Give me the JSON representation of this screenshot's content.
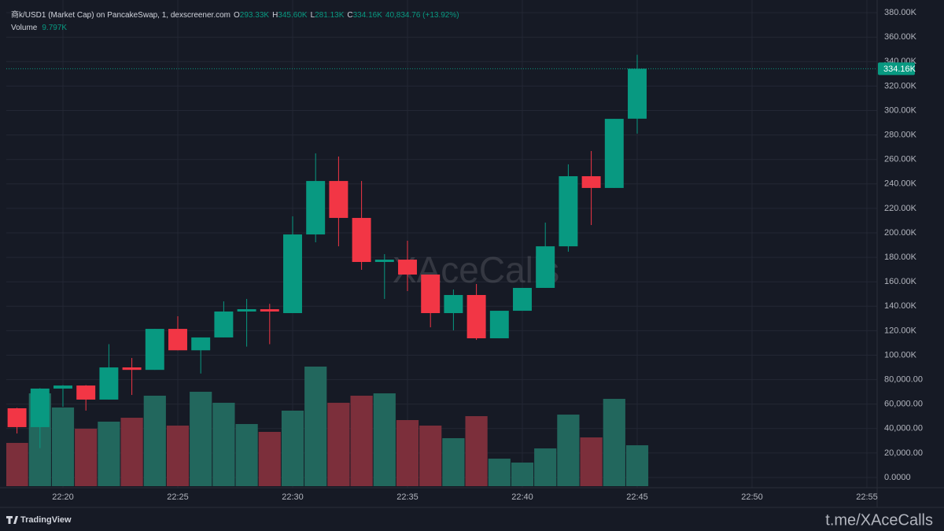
{
  "chart_data": {
    "type": "candlestick",
    "header": {
      "symbol": "商k/USD1 (Market Cap) on PancakeSwap, 1, dexscreener.com",
      "open_key": "O",
      "open": "293.33K",
      "high_key": "H",
      "high": "345.60K",
      "low_key": "L",
      "low": "281.13K",
      "close_key": "C",
      "close": "334.16K",
      "change": "40,834.76 (+13.92%)",
      "volume_key": "Volume",
      "volume": "9.797K"
    },
    "x": [
      "22:18",
      "22:19",
      "22:20",
      "22:21",
      "22:22",
      "22:23",
      "22:24",
      "22:25",
      "22:26",
      "22:27",
      "22:28",
      "22:29",
      "22:30",
      "22:31",
      "22:32",
      "22:33",
      "22:34",
      "22:35",
      "22:36",
      "22:37",
      "22:38",
      "22:39",
      "22:40",
      "22:41",
      "22:42",
      "22:43",
      "22:44",
      "22:45"
    ],
    "open": [
      56600,
      41200,
      72700,
      75200,
      63700,
      90000,
      88000,
      121500,
      104000,
      114500,
      135700,
      137600,
      134400,
      198700,
      242400,
      212200,
      176200,
      178100,
      165900,
      134400,
      149200,
      113800,
      136300,
      155000,
      189000,
      246300,
      236700,
      293330
    ],
    "high": [
      57000,
      73000,
      75500,
      75500,
      109000,
      97700,
      121500,
      131800,
      114500,
      144000,
      146000,
      142000,
      213500,
      265000,
      262400,
      242400,
      182600,
      193600,
      165900,
      153700,
      158200,
      136300,
      155000,
      208400,
      256000,
      266900,
      293200,
      345600
    ],
    "low": [
      36000,
      24000,
      57900,
      54700,
      63700,
      67500,
      88000,
      104000,
      85000,
      114500,
      107000,
      109000,
      134400,
      192300,
      189000,
      169800,
      146000,
      152400,
      122800,
      120300,
      112500,
      113800,
      136300,
      155000,
      184600,
      206400,
      236700,
      281130
    ],
    "close": [
      41200,
      72700,
      75200,
      63700,
      90000,
      88000,
      121500,
      104000,
      114500,
      135700,
      137600,
      135700,
      198700,
      242400,
      212200,
      176200,
      178100,
      165900,
      134400,
      149200,
      113800,
      136300,
      155000,
      189000,
      246300,
      236700,
      293200,
      334160
    ],
    "volume": [
      10360,
      22230,
      18840,
      13750,
      15450,
      16390,
      21670,
      14510,
      22610,
      19970,
      14880,
      13000,
      18090,
      28640,
      19970,
      21670,
      22230,
      15830,
      14510,
      11490,
      16770,
      6590,
      5650,
      9040,
      17140,
      11680,
      20910,
      9797
    ],
    "up_color": "#089981",
    "down_color": "#f23645",
    "volume_up_color": "#22675d",
    "volume_down_color": "#7c2f3b",
    "last_price": {
      "value": 334160,
      "label": "334.16K"
    },
    "xlim": [
      "22:17",
      "22:56"
    ],
    "xticks": [
      "22:20",
      "22:25",
      "22:30",
      "22:35",
      "22:40",
      "22:45",
      "22:50",
      "22:55"
    ],
    "ylim": [
      -7070,
      390350
    ],
    "yticks": [
      {
        "value": 0,
        "label": "0.0000"
      },
      {
        "value": 20000,
        "label": "20,000.00"
      },
      {
        "value": 40000,
        "label": "40,000.00"
      },
      {
        "value": 60000,
        "label": "60,000.00"
      },
      {
        "value": 80000,
        "label": "80,000.00"
      },
      {
        "value": 100000,
        "label": "100.00K"
      },
      {
        "value": 120000,
        "label": "120.00K"
      },
      {
        "value": 140000,
        "label": "140.00K"
      },
      {
        "value": 160000,
        "label": "160.00K"
      },
      {
        "value": 180000,
        "label": "180.00K"
      },
      {
        "value": 200000,
        "label": "200.00K"
      },
      {
        "value": 220000,
        "label": "220.00K"
      },
      {
        "value": 240000,
        "label": "240.00K"
      },
      {
        "value": 260000,
        "label": "260.00K"
      },
      {
        "value": 280000,
        "label": "280.00K"
      },
      {
        "value": 300000,
        "label": "300.00K"
      },
      {
        "value": 320000,
        "label": "320.00K"
      },
      {
        "value": 340000,
        "label": "340.00K"
      },
      {
        "value": 360000,
        "label": "360.00K"
      },
      {
        "value": 380000,
        "label": "380.00K"
      }
    ],
    "grid": true,
    "watermark": "XAceCalls",
    "brand": "TradingView",
    "footer_link": "t.me/XAceCalls"
  }
}
